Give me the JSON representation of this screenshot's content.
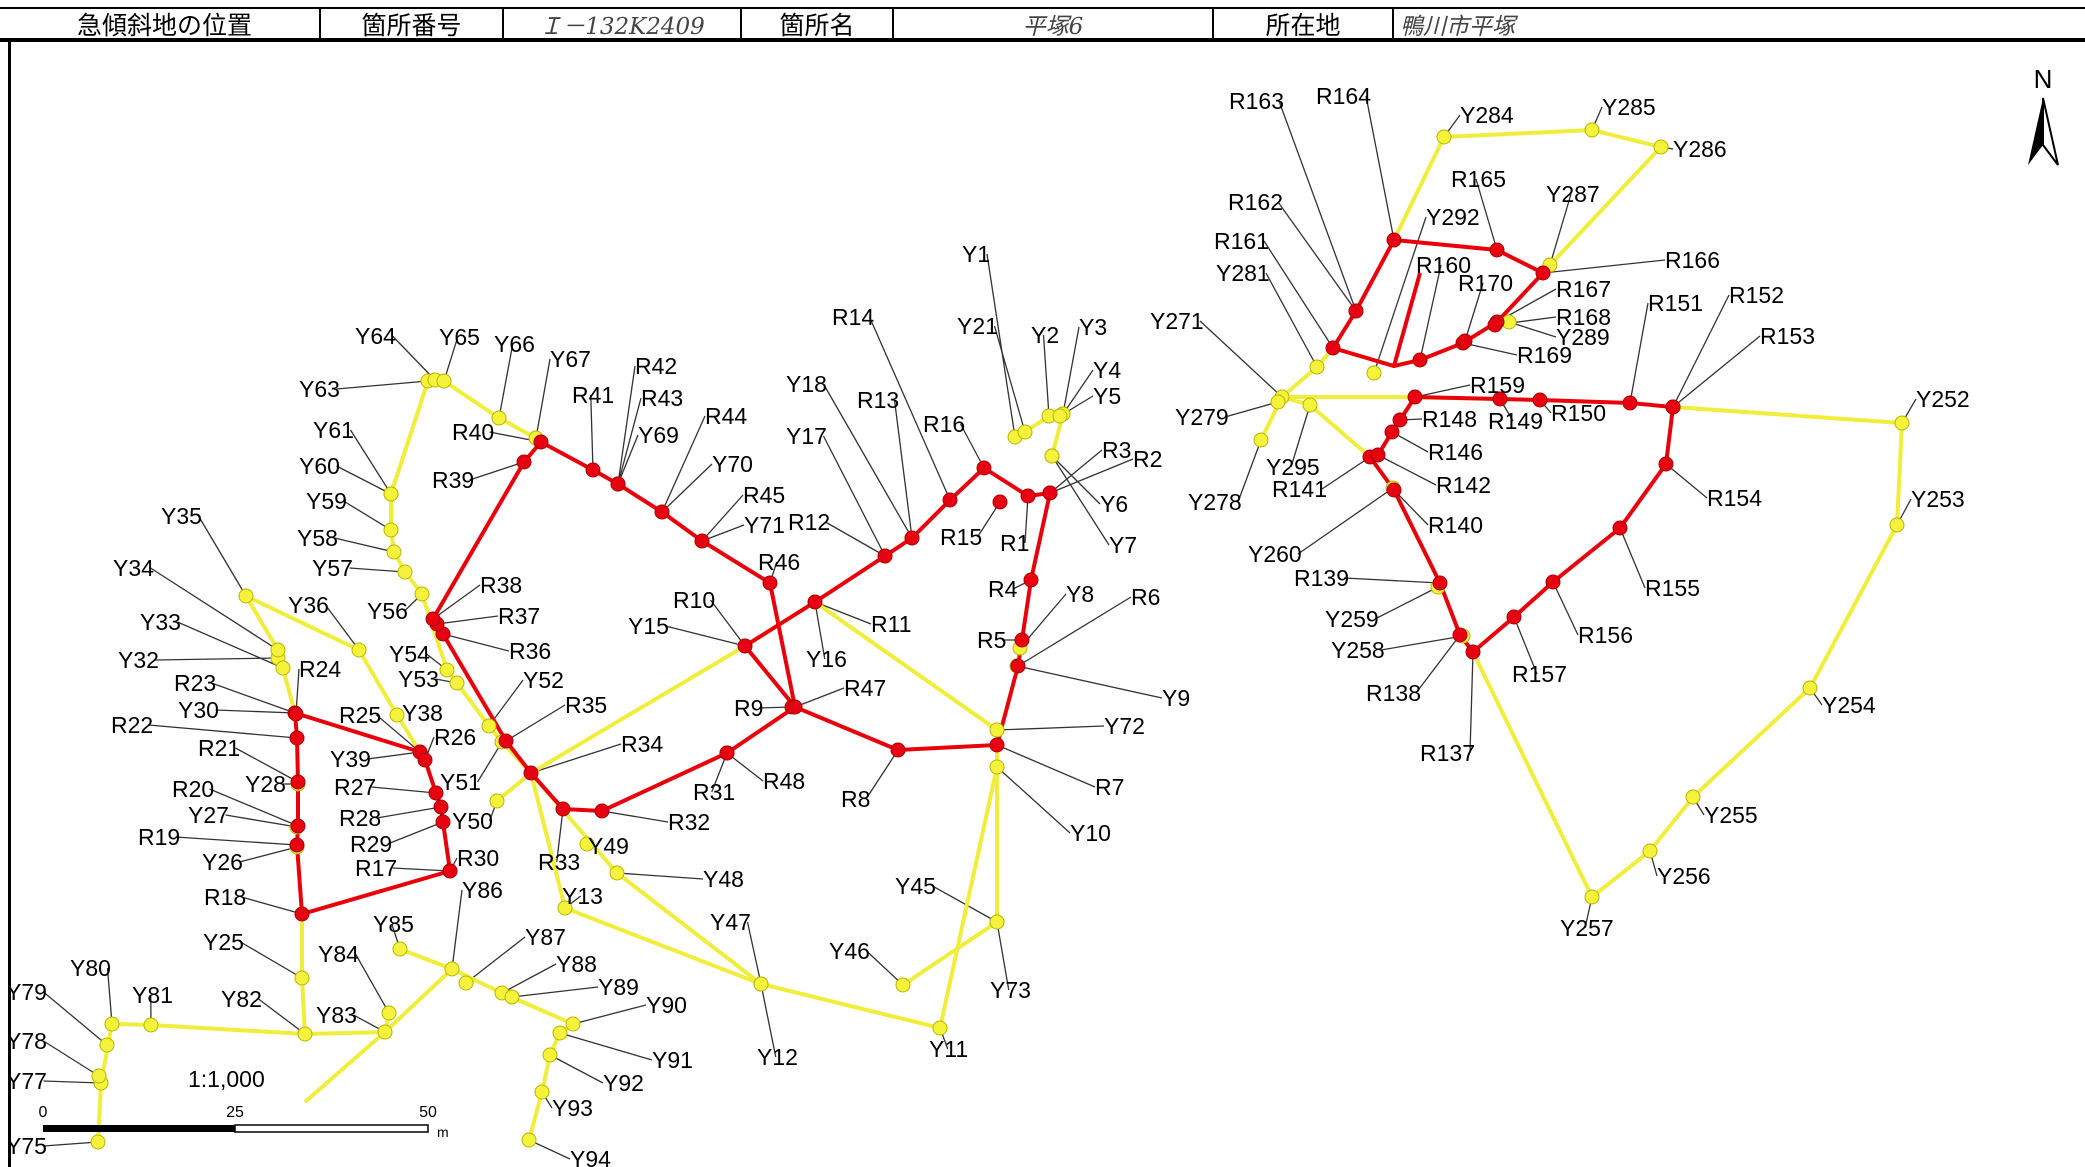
{
  "header": {
    "cells": [
      {
        "label": "急傾斜地の位置"
      },
      {
        "label": "箇所番号"
      },
      {
        "value": "Ｉ－132K2409"
      },
      {
        "label": "箇所名"
      },
      {
        "value": "平塚6"
      },
      {
        "label": "所在地"
      },
      {
        "value": "鴨川市平塚"
      }
    ]
  },
  "map": {
    "north_label": "N",
    "scale_ratio": "1:1,000",
    "scale_ticks": [
      "0",
      "25",
      "50"
    ],
    "scale_unit": "m",
    "colors": {
      "red_route": "#e8000b",
      "yellow_route": "#f0ee3a",
      "red_point": "#e60012",
      "yellow_point": "#f5f23c"
    },
    "red_points": [
      "R1",
      "R2",
      "R3",
      "R4",
      "R5",
      "R6",
      "R7",
      "R8",
      "R9",
      "R10",
      "R11",
      "R12",
      "R13",
      "R14",
      "R15",
      "R16",
      "R17",
      "R18",
      "R19",
      "R20",
      "R21",
      "R22",
      "R23",
      "R24",
      "R25",
      "R26",
      "R27",
      "R28",
      "R29",
      "R30",
      "R31",
      "R32",
      "R33",
      "R34",
      "R35",
      "R36",
      "R37",
      "R38",
      "R39",
      "R40",
      "R41",
      "R42",
      "R43",
      "R44",
      "R45",
      "R46",
      "R47",
      "R48",
      "R137",
      "R138",
      "R139",
      "R140",
      "R141",
      "R142",
      "R146",
      "R148",
      "R149",
      "R150",
      "R151",
      "R152",
      "R153",
      "R154",
      "R155",
      "R156",
      "R157",
      "R159",
      "R160",
      "R161",
      "R162",
      "R163",
      "R164",
      "R165",
      "R166",
      "R167",
      "R168",
      "R169",
      "R170"
    ],
    "yellow_points": [
      "Y1",
      "Y2",
      "Y3",
      "Y4",
      "Y5",
      "Y6",
      "Y7",
      "Y8",
      "Y9",
      "Y10",
      "Y11",
      "Y12",
      "Y13",
      "Y15",
      "Y16",
      "Y17",
      "Y18",
      "Y21",
      "Y25",
      "Y26",
      "Y27",
      "Y28",
      "Y30",
      "Y32",
      "Y33",
      "Y34",
      "Y35",
      "Y36",
      "Y38",
      "Y39",
      "Y45",
      "Y46",
      "Y47",
      "Y48",
      "Y49",
      "Y50",
      "Y51",
      "Y52",
      "Y53",
      "Y54",
      "Y56",
      "Y57",
      "Y58",
      "Y59",
      "Y60",
      "Y61",
      "Y63",
      "Y64",
      "Y65",
      "Y66",
      "Y67",
      "Y69",
      "Y70",
      "Y71",
      "Y72",
      "Y73",
      "Y75",
      "Y77",
      "Y78",
      "Y79",
      "Y80",
      "Y81",
      "Y82",
      "Y83",
      "Y84",
      "Y85",
      "Y86",
      "Y87",
      "Y88",
      "Y89",
      "Y90",
      "Y91",
      "Y92",
      "Y93",
      "Y94",
      "Y252",
      "Y253",
      "Y254",
      "Y255",
      "Y256",
      "Y257",
      "Y258",
      "Y259",
      "Y260",
      "Y271",
      "Y278",
      "Y279",
      "Y281",
      "Y284",
      "Y285",
      "Y286",
      "Y287",
      "Y289",
      "Y292",
      "Y295"
    ]
  }
}
